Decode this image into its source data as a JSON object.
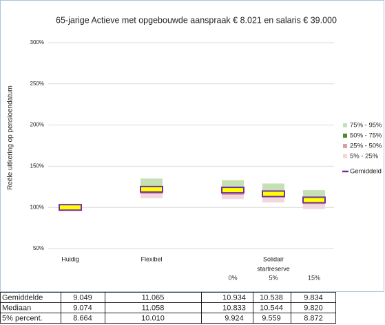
{
  "chart_data": {
    "type": "range-bar",
    "title": "65-jarige Actieve met opgebouwde aanspraak € 8.021 en salaris € 39.000",
    "y_label": "Reële uitkering op pensioendatum",
    "categories": [
      "Huidig",
      "Flexibel",
      "0%",
      "5%",
      "15%"
    ],
    "group_label": "Solidair",
    "group_sublabel": "startreserve",
    "ylim": [
      50,
      300
    ],
    "yticks": [
      {
        "value": 50,
        "label": "50%"
      },
      {
        "value": 100,
        "label": "100%"
      },
      {
        "value": 150,
        "label": "150%"
      },
      {
        "value": 200,
        "label": "200%"
      },
      {
        "value": 250,
        "label": "250%"
      },
      {
        "value": 300,
        "label": "300%"
      }
    ],
    "grid": true,
    "series": [
      {
        "name": "75% - 95%",
        "color": "#c5e0b4",
        "values": [
          [
            100,
            100
          ],
          [
            126,
            135
          ],
          [
            124,
            133
          ],
          [
            120,
            129
          ],
          [
            112,
            121
          ]
        ]
      },
      {
        "name": "50% - 75%",
        "color": "#4e8a2e",
        "values": [
          [
            100,
            100
          ],
          [
            122,
            126
          ],
          [
            120,
            124
          ],
          [
            116.5,
            120
          ],
          [
            108.5,
            112
          ]
        ]
      },
      {
        "name": "25% - 50%",
        "color": "#d8a1a5",
        "values": [
          [
            100,
            100
          ],
          [
            116,
            122
          ],
          [
            115,
            120
          ],
          [
            112,
            116.5
          ],
          [
            104,
            108.5
          ]
        ]
      },
      {
        "name": "5% - 25%",
        "color": "#f2d8dc",
        "values": [
          [
            100,
            100
          ],
          [
            111,
            116
          ],
          [
            110,
            115
          ],
          [
            106,
            112
          ],
          [
            98,
            104
          ]
        ]
      }
    ],
    "mean": {
      "name": "Gemiddeld",
      "color": "#7030a0",
      "fill": "#ffff00",
      "values": [
        100,
        122,
        121,
        116.5,
        109
      ]
    }
  },
  "table": {
    "rows": [
      [
        "Gemiddelde",
        "9.049",
        "11.065",
        "10.934",
        "10.538",
        "9.834"
      ],
      [
        "Mediaan",
        "9.074",
        "11.058",
        "10.833",
        "10.544",
        "9.820"
      ],
      [
        "5% percent.",
        "8.664",
        "10.010",
        "9.924",
        "9.559",
        "8.872"
      ]
    ]
  }
}
